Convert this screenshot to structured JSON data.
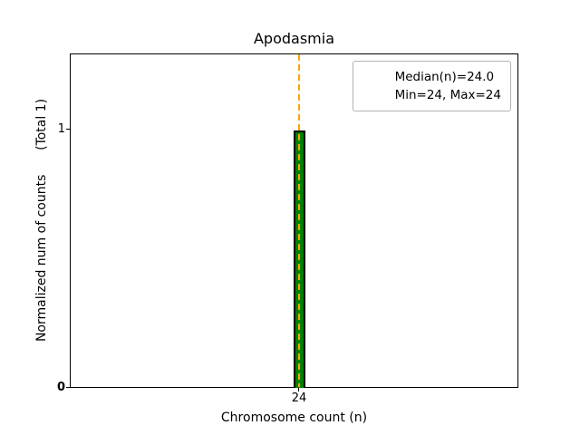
{
  "chart_data": {
    "type": "bar",
    "title": "Apodasmia",
    "xlabel": "Chromosome count (n)",
    "ylabel": "Normalized num of counts      (Total 1)",
    "x": [
      24
    ],
    "values": [
      1
    ],
    "total_counts": 1,
    "xticks": [
      "24"
    ],
    "yticks": [
      "0",
      "1"
    ],
    "ylim": [
      0,
      1.3
    ],
    "grid": false,
    "stats": {
      "median": 24.0,
      "min": 24,
      "max": 24
    },
    "legend": {
      "position": "upper right",
      "entries": [
        {
          "label": "Median(n)=24.0",
          "handle": "dashed-line",
          "color": "#FFA500"
        },
        {
          "label": "Min=24, Max=24",
          "handle": "none"
        }
      ]
    },
    "colors": {
      "bar_fill": "#008000",
      "bar_edge": "#000000",
      "median_line": "#FFA500",
      "background": "#FFFFFF"
    }
  }
}
